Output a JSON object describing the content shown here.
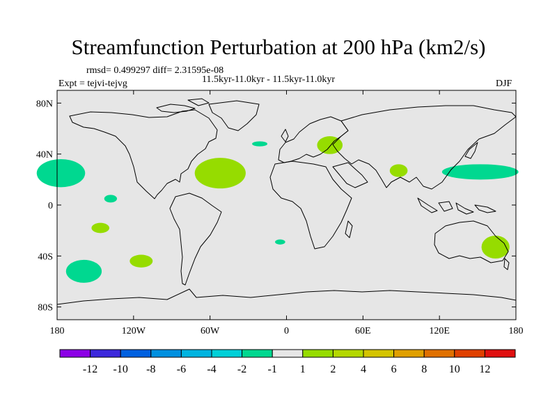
{
  "title": "Streamfunction Perturbation at 200 hPa (km2/s)",
  "stats": "rmsd= 0.499297 diff= 2.31595e-08",
  "periods": "11.5kyr-11.0kyr - 11.5kyr-11.0kyr",
  "expt": "Expt = tejvi-tejvg",
  "season": "DJF",
  "map": {
    "lon_range": [
      -180,
      180
    ],
    "lat_range": [
      -90,
      90
    ],
    "background": "#e6e6e6",
    "x_ticks": [
      {
        "value": -180,
        "label": "180"
      },
      {
        "value": -120,
        "label": "120W"
      },
      {
        "value": -60,
        "label": "60W"
      },
      {
        "value": 0,
        "label": "0"
      },
      {
        "value": 60,
        "label": "60E"
      },
      {
        "value": 120,
        "label": "120E"
      },
      {
        "value": 180,
        "label": "180"
      }
    ],
    "y_ticks": [
      {
        "value": 80,
        "label": "80N"
      },
      {
        "value": 40,
        "label": "40N"
      },
      {
        "value": 0,
        "label": "0"
      },
      {
        "value": -40,
        "label": "40S"
      },
      {
        "value": -80,
        "label": "80S"
      }
    ],
    "anomalies": [
      {
        "name": "central-pacific-north",
        "lon": -177,
        "lat": 25,
        "rlon": 19,
        "rlat": 11,
        "color": "#00d890",
        "value": "-1 to -2"
      },
      {
        "name": "north-atlantic",
        "lon": -52,
        "lat": 25,
        "rlon": 20,
        "rlat": 12,
        "color": "#96dc00",
        "value": "1 to 2"
      },
      {
        "name": "mid-atlantic-small",
        "lon": -21,
        "lat": 48,
        "rlon": 6,
        "rlat": 2,
        "color": "#00d890",
        "value": "-1 to -2"
      },
      {
        "name": "black-sea",
        "lon": 34,
        "lat": 47,
        "rlon": 10,
        "rlat": 7,
        "color": "#96dc00",
        "value": "1 to 2"
      },
      {
        "name": "india",
        "lon": 88,
        "lat": 27,
        "rlon": 7,
        "rlat": 5,
        "color": "#96dc00",
        "value": "1 to 2"
      },
      {
        "name": "west-pacific-jet",
        "lon": 152,
        "lat": 26,
        "rlon": 30,
        "rlat": 6,
        "color": "#00d890",
        "value": "-1 to -2"
      },
      {
        "name": "east-pacific-tropics",
        "lon": -138,
        "lat": 5,
        "rlon": 5,
        "rlat": 3,
        "color": "#00d890",
        "value": "-1 to -2"
      },
      {
        "name": "south-pacific-small",
        "lon": -146,
        "lat": -18,
        "rlon": 7,
        "rlat": 4,
        "color": "#96dc00",
        "value": "1 to 2"
      },
      {
        "name": "south-atlantic-small",
        "lon": -5,
        "lat": -29,
        "rlon": 4,
        "rlat": 2,
        "color": "#00d890",
        "value": "-1 to -2"
      },
      {
        "name": "south-pacific-mid",
        "lon": -114,
        "lat": -44,
        "rlon": 9,
        "rlat": 5,
        "color": "#96dc00",
        "value": "1 to 2"
      },
      {
        "name": "south-pacific-large",
        "lon": -159,
        "lat": -52,
        "rlon": 14,
        "rlat": 9,
        "color": "#00d890",
        "value": "-1 to -2"
      },
      {
        "name": "east-australia",
        "lon": 164,
        "lat": -33,
        "rlon": 11,
        "rlat": 9,
        "color": "#96dc00",
        "value": "1 to 2"
      }
    ]
  },
  "colorbar": {
    "colors": [
      "#8c00e6",
      "#3c28dc",
      "#0060e0",
      "#0090e0",
      "#00b4e0",
      "#00d0d8",
      "#00d890",
      "#e6e6e6",
      "#96dc00",
      "#b4d800",
      "#d4c400",
      "#e0a000",
      "#e07000",
      "#e04000",
      "#e01010"
    ],
    "labels": [
      "-12",
      "-10",
      "-8",
      "-6",
      "-4",
      "-2",
      "-1",
      "1",
      "2",
      "4",
      "6",
      "8",
      "10",
      "12"
    ]
  }
}
